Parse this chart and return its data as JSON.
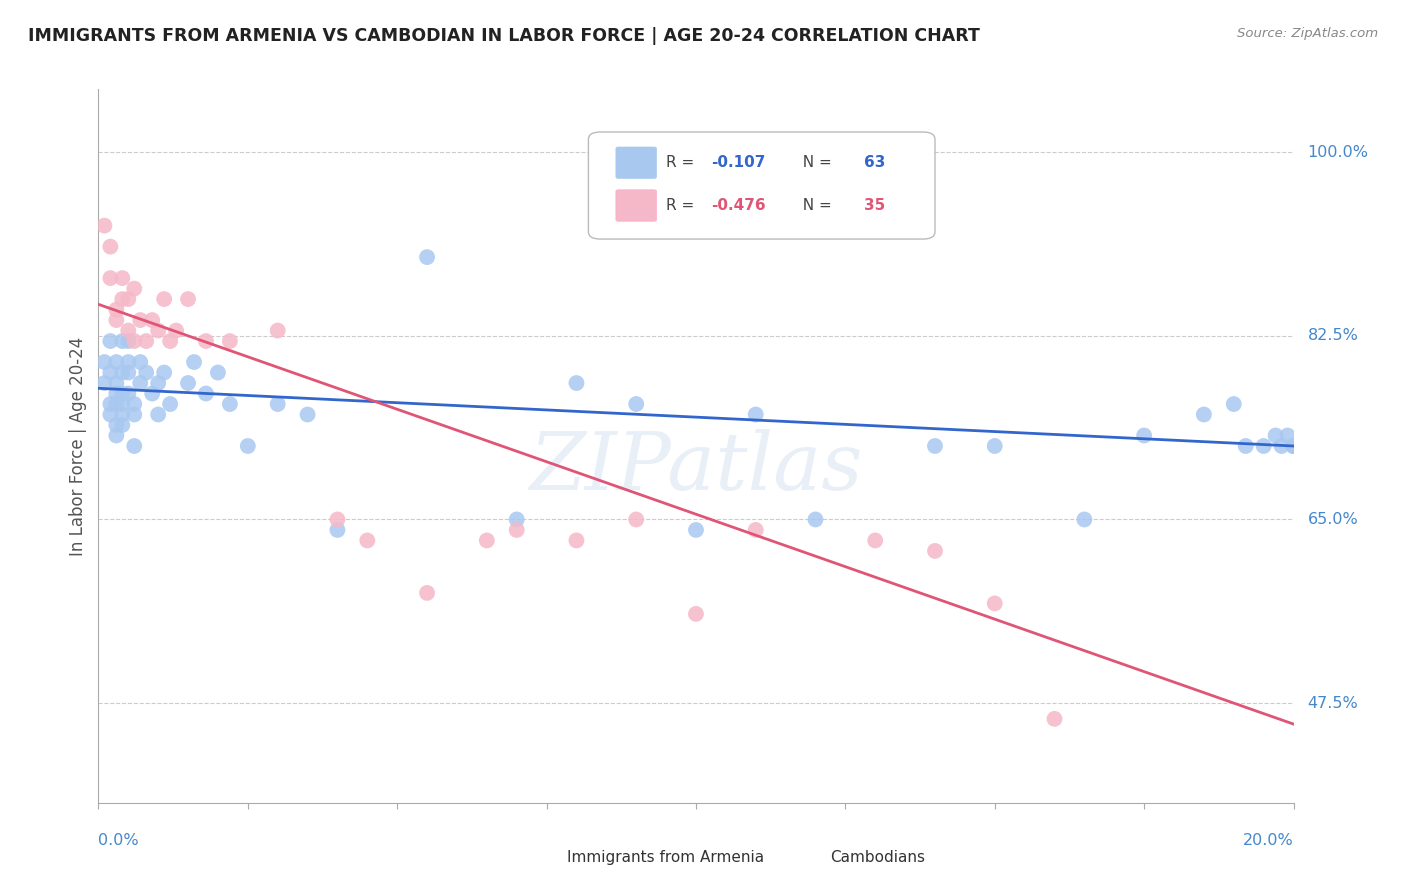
{
  "title": "IMMIGRANTS FROM ARMENIA VS CAMBODIAN IN LABOR FORCE | AGE 20-24 CORRELATION CHART",
  "source": "Source: ZipAtlas.com",
  "ylabel": "In Labor Force | Age 20-24",
  "ytick_labels": [
    "100.0%",
    "82.5%",
    "65.0%",
    "47.5%"
  ],
  "ytick_values": [
    1.0,
    0.825,
    0.65,
    0.475
  ],
  "xlim": [
    0.0,
    0.2
  ],
  "ylim": [
    0.38,
    1.06
  ],
  "armenia_color": "#a8c8f0",
  "cambodian_color": "#f5b8c8",
  "armenia_line_color": "#3366cc",
  "cambodian_line_color": "#e05575",
  "background_color": "#ffffff",
  "grid_color": "#cccccc",
  "axis_color": "#4488cc",
  "title_color": "#222222",
  "watermark": "ZIPatlas",
  "armenia_x": [
    0.001,
    0.001,
    0.002,
    0.002,
    0.002,
    0.002,
    0.003,
    0.003,
    0.003,
    0.003,
    0.003,
    0.003,
    0.004,
    0.004,
    0.004,
    0.004,
    0.004,
    0.004,
    0.005,
    0.005,
    0.005,
    0.005,
    0.006,
    0.006,
    0.006,
    0.007,
    0.007,
    0.008,
    0.009,
    0.01,
    0.01,
    0.011,
    0.012,
    0.015,
    0.016,
    0.018,
    0.02,
    0.022,
    0.025,
    0.03,
    0.035,
    0.04,
    0.055,
    0.07,
    0.08,
    0.09,
    0.1,
    0.11,
    0.12,
    0.14,
    0.15,
    0.165,
    0.175,
    0.185,
    0.19,
    0.192,
    0.195,
    0.197,
    0.198,
    0.199,
    0.2,
    0.2,
    0.2
  ],
  "armenia_y": [
    0.78,
    0.8,
    0.76,
    0.79,
    0.82,
    0.75,
    0.76,
    0.78,
    0.8,
    0.73,
    0.74,
    0.77,
    0.75,
    0.77,
    0.79,
    0.82,
    0.74,
    0.76,
    0.77,
    0.79,
    0.8,
    0.82,
    0.75,
    0.72,
    0.76,
    0.78,
    0.8,
    0.79,
    0.77,
    0.75,
    0.78,
    0.79,
    0.76,
    0.78,
    0.8,
    0.77,
    0.79,
    0.76,
    0.72,
    0.76,
    0.75,
    0.64,
    0.9,
    0.65,
    0.78,
    0.76,
    0.64,
    0.75,
    0.65,
    0.72,
    0.72,
    0.65,
    0.73,
    0.75,
    0.76,
    0.72,
    0.72,
    0.73,
    0.72,
    0.73,
    0.72,
    0.72,
    0.72
  ],
  "cambodian_x": [
    0.001,
    0.002,
    0.002,
    0.003,
    0.003,
    0.004,
    0.004,
    0.005,
    0.005,
    0.006,
    0.006,
    0.007,
    0.008,
    0.009,
    0.01,
    0.011,
    0.012,
    0.013,
    0.015,
    0.018,
    0.022,
    0.03,
    0.04,
    0.045,
    0.055,
    0.065,
    0.07,
    0.08,
    0.09,
    0.1,
    0.11,
    0.13,
    0.14,
    0.15,
    0.16
  ],
  "cambodian_y": [
    0.93,
    0.91,
    0.88,
    0.85,
    0.84,
    0.86,
    0.88,
    0.83,
    0.86,
    0.82,
    0.87,
    0.84,
    0.82,
    0.84,
    0.83,
    0.86,
    0.82,
    0.83,
    0.86,
    0.82,
    0.82,
    0.83,
    0.65,
    0.63,
    0.58,
    0.63,
    0.64,
    0.63,
    0.65,
    0.56,
    0.64,
    0.63,
    0.62,
    0.57,
    0.46
  ],
  "armenia_line_x": [
    0.0,
    0.2
  ],
  "armenia_line_y": [
    0.775,
    0.72
  ],
  "cambodian_line_x": [
    0.0,
    0.2
  ],
  "cambodian_line_y": [
    0.855,
    0.455
  ]
}
